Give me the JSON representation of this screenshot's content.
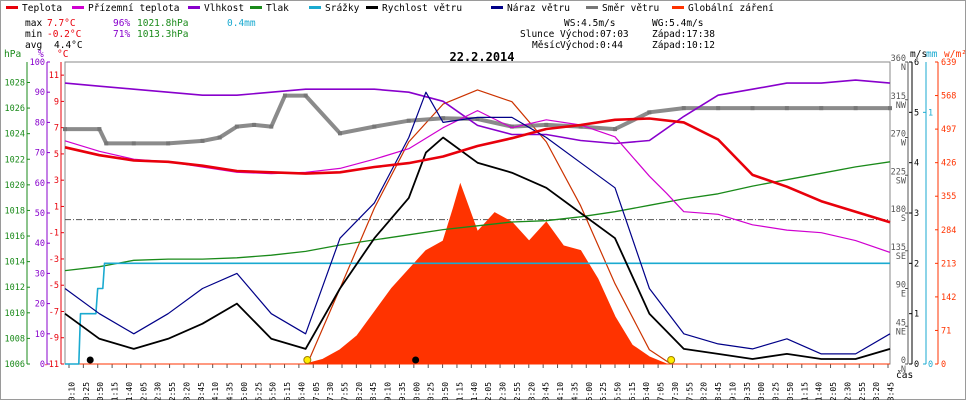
{
  "legend": [
    {
      "label": "Teplota",
      "color": "#e8000b"
    },
    {
      "label": "Přízemní teplota",
      "color": "#d000d0"
    },
    {
      "label": "Vlhkost",
      "color": "#8800cc"
    },
    {
      "label": "Tlak",
      "color": "#1a8a1a"
    },
    {
      "label": "Srážky",
      "color": "#1aaad0"
    },
    {
      "label": "Rychlost větru",
      "color": "#000000"
    },
    {
      "label": "Náraz větru",
      "color": "#000088"
    },
    {
      "label": "Směr větru",
      "color": "#777777"
    },
    {
      "label": "Globální záření",
      "color": "#ff3300"
    }
  ],
  "stats": {
    "max": {
      "label": "max",
      "temp": "7.7°C",
      "hum": "96%",
      "pres": "1021.8hPa",
      "rain": "0.4mm"
    },
    "min": {
      "label": "min",
      "temp": "-0.2°C",
      "hum": "71%",
      "pres": "1013.3hPa"
    },
    "avg": {
      "label": "avg",
      "temp": "4.4°C"
    }
  },
  "info": {
    "ws": "WS:4.5m/s",
    "wg": "WG:5.4m/s",
    "sun_label": "Slunce",
    "sun_rise": "Východ:07:03",
    "sun_set": "Západ:17:38",
    "moon_label": "Měsíc",
    "moon_rise": "Východ:0:44",
    "moon_set": "Západ:10:12"
  },
  "units": {
    "hpa": "hPa",
    "pct": "%",
    "degc": "°C",
    "ms": "m/s",
    "mm": "mm",
    "wm2": "w/m²"
  },
  "xaxis_label": "čas",
  "chart_data": {
    "type": "line",
    "title": "22.2.2014",
    "x_ticks": [
      "00:10",
      "00:25",
      "00:50",
      "01:15",
      "01:40",
      "02:05",
      "02:30",
      "02:55",
      "03:20",
      "03:45",
      "04:10",
      "04:35",
      "05:00",
      "05:25",
      "05:50",
      "06:15",
      "06:40",
      "07:05",
      "07:30",
      "07:55",
      "08:20",
      "08:45",
      "09:10",
      "09:35",
      "10:00",
      "10:25",
      "10:50",
      "11:15",
      "11:40",
      "12:05",
      "12:30",
      "12:55",
      "13:20",
      "13:45",
      "14:10",
      "14:35",
      "15:00",
      "15:25",
      "15:50",
      "16:15",
      "16:40",
      "17:05",
      "17:30",
      "17:55",
      "18:20",
      "18:45",
      "19:10",
      "19:35",
      "20:00",
      "20:25",
      "20:50",
      "21:15",
      "21:40",
      "22:05",
      "22:30",
      "22:55",
      "23:20",
      "23:45"
    ],
    "y_axes": {
      "pressure_hpa": {
        "ticks": [
          1006,
          1008,
          1010,
          1012,
          1014,
          1016,
          1018,
          1020,
          1022,
          1024,
          1026,
          1028
        ],
        "range": [
          1006,
          1029.6
        ]
      },
      "humidity_pct": {
        "ticks": [
          0,
          10,
          20,
          30,
          40,
          50,
          60,
          70,
          80,
          90,
          100
        ],
        "range": [
          0,
          100
        ]
      },
      "temperature_c": {
        "ticks": [
          -11,
          -9,
          -7,
          -5,
          -3,
          -1,
          1,
          3,
          5,
          7,
          9,
          11
        ],
        "range": [
          -11,
          12
        ]
      },
      "wind_dir_deg": {
        "ticks": [
          0,
          45,
          90,
          135,
          180,
          225,
          270,
          315,
          360
        ],
        "labels": [
          "N",
          "NE",
          "E",
          "SE",
          "S",
          "SW",
          "W",
          "NW",
          "N"
        ],
        "range": [
          0,
          360
        ]
      },
      "wind_speed_ms": {
        "ticks": [
          0,
          1,
          2,
          3,
          4,
          5,
          6
        ],
        "range": [
          0,
          6
        ]
      },
      "rain_mm": {
        "ticks": [
          0,
          1
        ],
        "range": [
          0,
          1.2
        ]
      },
      "radiation_wm2": {
        "ticks": [
          0,
          71,
          142,
          213,
          284,
          355,
          426,
          497,
          568,
          639
        ],
        "range": [
          0,
          639
        ]
      }
    },
    "series": [
      {
        "name": "Teplota",
        "axis": "temperature_c",
        "x": [
          0,
          1,
          2,
          3,
          4,
          5,
          6,
          7,
          8,
          9,
          10,
          11,
          12,
          13,
          14,
          15,
          16,
          17,
          18,
          19,
          20,
          21,
          22,
          23,
          24
        ],
        "y": [
          5.5,
          4.9,
          4.5,
          4.4,
          4.1,
          3.7,
          3.6,
          3.5,
          3.6,
          4.0,
          4.3,
          4.8,
          5.6,
          6.2,
          6.9,
          7.2,
          7.6,
          7.7,
          7.4,
          6.1,
          3.4,
          2.5,
          1.4,
          0.6,
          -0.2
        ]
      },
      {
        "name": "Přízemní teplota",
        "axis": "temperature_c",
        "x": [
          0,
          1,
          2,
          3,
          4,
          5,
          6,
          7,
          8,
          9,
          10,
          11,
          12,
          13,
          14,
          15,
          16,
          17,
          17.5,
          18,
          19,
          20,
          21,
          22,
          23,
          24
        ],
        "y": [
          6.0,
          5.2,
          4.6,
          4.4,
          4.0,
          3.6,
          3.5,
          3.6,
          3.9,
          4.6,
          5.4,
          7.0,
          8.3,
          7.0,
          7.6,
          7.2,
          6.3,
          3.3,
          2.0,
          0.6,
          0.4,
          -0.4,
          -0.8,
          -1.0,
          -1.6,
          -2.5
        ]
      },
      {
        "name": "Vlhkost",
        "axis": "humidity_pct",
        "x": [
          0,
          1,
          2,
          3,
          4,
          5,
          6,
          7,
          8,
          9,
          10,
          11,
          12,
          13,
          14,
          15,
          16,
          17,
          18,
          19,
          20,
          21,
          22,
          23,
          24
        ],
        "y": [
          93,
          92,
          91,
          90,
          89,
          89,
          90,
          91,
          91,
          91,
          90,
          87,
          79,
          76,
          76,
          74,
          73,
          74,
          82,
          89,
          91,
          93,
          93,
          94,
          93
        ]
      },
      {
        "name": "Tlak",
        "axis": "pressure_hpa",
        "x": [
          0,
          1,
          2,
          3,
          4,
          5,
          6,
          7,
          8,
          9,
          10,
          11,
          12,
          13,
          14,
          15,
          16,
          17,
          18,
          19,
          20,
          21,
          22,
          23,
          24
        ],
        "y": [
          1013.3,
          1013.6,
          1014.1,
          1014.2,
          1014.2,
          1014.3,
          1014.5,
          1014.8,
          1015.3,
          1015.7,
          1016.1,
          1016.5,
          1016.8,
          1017.1,
          1017.2,
          1017.5,
          1017.9,
          1018.4,
          1018.9,
          1019.3,
          1019.9,
          1020.4,
          1020.9,
          1021.4,
          1021.8
        ]
      },
      {
        "name": "Srážky",
        "axis": "rain_mm",
        "x": [
          0,
          0.4,
          0.45,
          0.9,
          0.95,
          1.1,
          1.15,
          24
        ],
        "y": [
          0,
          0,
          0.2,
          0.2,
          0.3,
          0.3,
          0.4,
          0.4
        ]
      },
      {
        "name": "Rychlost větru",
        "axis": "wind_speed_ms",
        "x": [
          0,
          1,
          2,
          3,
          4,
          5,
          6,
          7,
          8,
          9,
          10,
          10.5,
          11,
          12,
          13,
          14,
          15,
          16,
          17,
          18,
          19,
          20,
          21,
          22,
          23,
          24
        ],
        "y": [
          1.0,
          0.5,
          0.3,
          0.5,
          0.8,
          1.2,
          0.5,
          0.3,
          1.5,
          2.5,
          3.3,
          4.2,
          4.5,
          4.0,
          3.8,
          3.5,
          3.0,
          2.5,
          1.0,
          0.3,
          0.2,
          0.1,
          0.2,
          0.1,
          0.1,
          0.3
        ]
      },
      {
        "name": "Náraz větru",
        "axis": "wind_speed_ms",
        "x": [
          0,
          1,
          2,
          3,
          4,
          5,
          6,
          7,
          8,
          9,
          10,
          10.5,
          11,
          12,
          13,
          14,
          15,
          16,
          17,
          18,
          19,
          20,
          21,
          22,
          23,
          24
        ],
        "y": [
          1.5,
          1.0,
          0.6,
          1.0,
          1.5,
          1.8,
          1.0,
          0.6,
          2.5,
          3.2,
          4.5,
          5.4,
          4.8,
          4.9,
          4.9,
          4.5,
          4.0,
          3.5,
          1.5,
          0.6,
          0.4,
          0.3,
          0.5,
          0.2,
          0.2,
          0.6
        ]
      },
      {
        "name": "Směr větru",
        "axis": "wind_dir_deg",
        "x": [
          0,
          1,
          1.2,
          2,
          3,
          4,
          4.5,
          5,
          5.5,
          6,
          6.4,
          7,
          8,
          9,
          10,
          11,
          12,
          13,
          14,
          15,
          16,
          17,
          18,
          19,
          20,
          21,
          22,
          23,
          24
        ],
        "y": [
          280,
          280,
          263,
          263,
          263,
          266,
          270,
          283,
          285,
          283,
          320,
          320,
          275,
          283,
          290,
          293,
          292,
          283,
          285,
          283,
          280,
          300,
          305,
          305,
          305,
          305,
          305,
          305,
          305
        ]
      },
      {
        "name": "Globální záření",
        "axis": "radiation_wm2",
        "x": [
          0,
          7.0,
          7.5,
          8,
          8.5,
          9,
          9.5,
          10,
          10.5,
          11,
          11.3,
          11.5,
          12,
          12.5,
          13,
          13.5,
          14,
          14.5,
          15,
          15.5,
          16,
          16.5,
          17,
          17.5,
          24
        ],
        "y": [
          0,
          0,
          10,
          30,
          60,
          110,
          160,
          200,
          240,
          260,
          330,
          380,
          280,
          320,
          300,
          260,
          300,
          250,
          240,
          180,
          100,
          40,
          15,
          0,
          0
        ]
      }
    ],
    "theoretical_radiation": {
      "axis": "radiation_wm2",
      "x": [
        7.05,
        8,
        9,
        10,
        11,
        12,
        13,
        14,
        15,
        16,
        17,
        17.63
      ],
      "y": [
        0,
        160,
        330,
        470,
        550,
        580,
        555,
        470,
        335,
        170,
        30,
        0
      ]
    },
    "sun_events": {
      "sunrise": "07:03",
      "sunset": "17:38"
    },
    "moon_events": {
      "moonrise": "00:44",
      "moonset": "10:12"
    }
  }
}
